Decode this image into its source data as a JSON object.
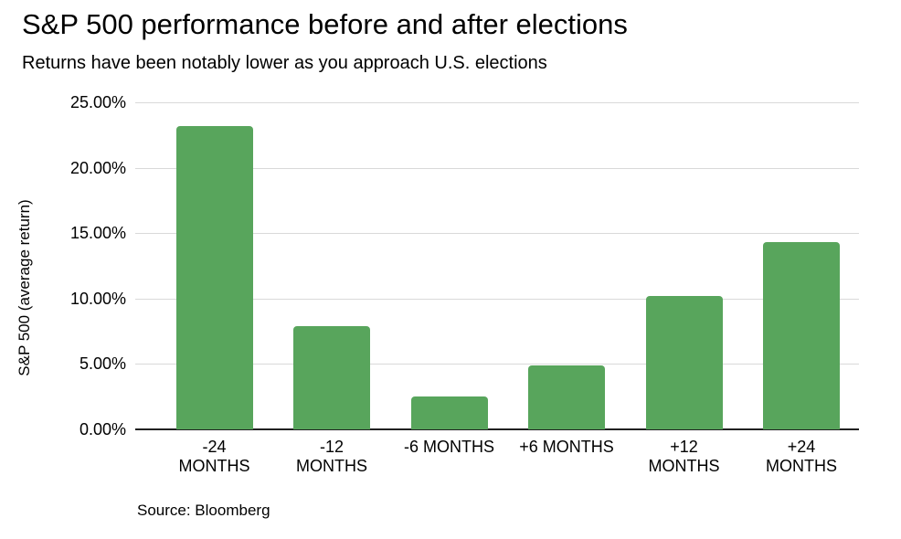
{
  "header": {
    "title": "S&P 500 performance before and after elections",
    "subtitle": "Returns have been notably lower as you approach U.S. elections"
  },
  "footer": {
    "source": "Source: Bloomberg"
  },
  "chart_data": {
    "type": "bar",
    "title": "S&P 500 performance before and after elections",
    "subtitle": "Returns have been notably lower as you approach U.S. elections",
    "xlabel": "",
    "ylabel": "S&P 500 (average return)",
    "categories": [
      "-24\nMONTHS",
      "-12\nMONTHS",
      "-6 MONTHS",
      "+6 MONTHS",
      "+12\nMONTHS",
      "+24\nMONTHS"
    ],
    "values": [
      23.2,
      7.9,
      2.5,
      4.9,
      10.2,
      14.3
    ],
    "unit": "percent",
    "ylim": [
      0,
      25
    ],
    "yticks": [
      {
        "value": 0,
        "label": "0.00%"
      },
      {
        "value": 5,
        "label": "5.00%"
      },
      {
        "value": 10,
        "label": "10.00%"
      },
      {
        "value": 15,
        "label": "15.00%"
      },
      {
        "value": 20,
        "label": "20.00%"
      },
      {
        "value": 25,
        "label": "25.00%"
      }
    ],
    "grid": "horizontal",
    "legend": "none",
    "bar_color": "#58a55c",
    "gridline_color": "#d9d9d9",
    "axis_color": "#212121",
    "source": "Source: Bloomberg"
  }
}
